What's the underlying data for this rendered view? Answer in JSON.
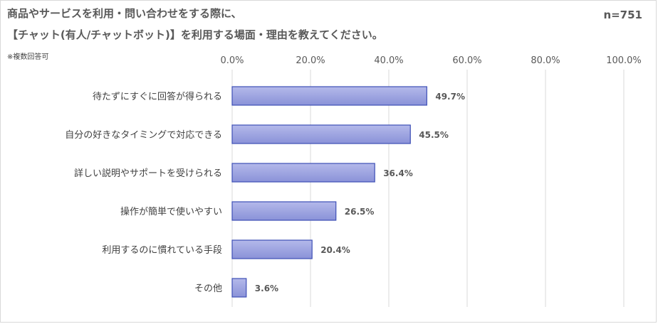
{
  "header": {
    "title_line1": "商品やサービスを利用・問い合わせをする際に、",
    "title_line2": "【チャット(有人/チャットボット)】を利用する場面・理由を教えてください。",
    "note": "※複数回答可",
    "sample_size": "n=751"
  },
  "chart_data": {
    "type": "bar",
    "orientation": "horizontal",
    "categories": [
      "待たずにすぐに回答が得られる",
      "自分の好きなタイミングで対応できる",
      "詳しい説明やサポートを受けられる",
      "操作が簡単で使いやすい",
      "利用するのに慣れている手段",
      "その他"
    ],
    "values": [
      49.7,
      45.5,
      36.4,
      26.5,
      20.4,
      3.6
    ],
    "data_labels": [
      "49.7%",
      "45.5%",
      "36.4%",
      "26.5%",
      "20.4%",
      "3.6%"
    ],
    "xlim": [
      0,
      100
    ],
    "x_ticks": [
      "0.0%",
      "20.0%",
      "40.0%",
      "60.0%",
      "80.0%",
      "100.0%"
    ],
    "x_tick_values": [
      0,
      20,
      40,
      60,
      80,
      100
    ],
    "axis_position": "top",
    "grid": true,
    "legend": "none",
    "colors": {
      "bar_fill_top": "#b4b9ea",
      "bar_fill_bottom": "#8a92d8",
      "bar_stroke": "#3e4fb6",
      "grid": "#d9d9d9"
    }
  }
}
